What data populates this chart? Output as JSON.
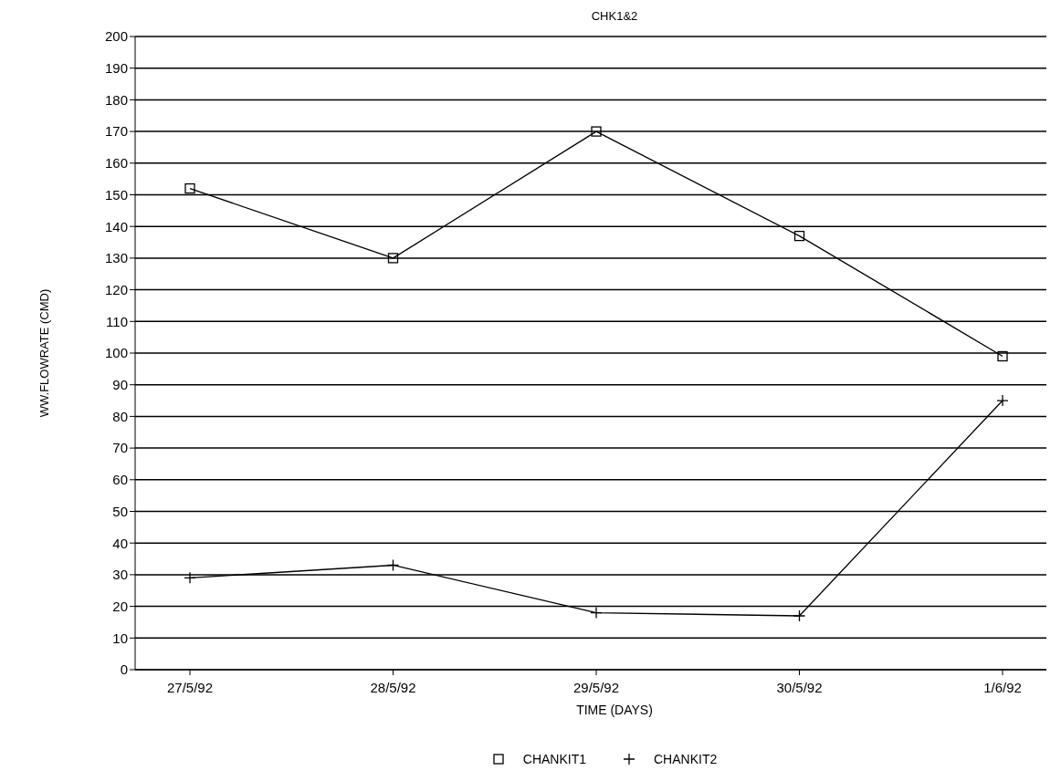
{
  "chart_data": {
    "type": "line",
    "title": "CHK1&2",
    "xlabel": "TIME (DAYS)",
    "ylabel": "WW.FLOWRATE (CMD)",
    "categories": [
      "27/5/92",
      "28/5/92",
      "29/5/92",
      "30/5/92",
      "1/6/92"
    ],
    "series": [
      {
        "name": "CHANKIT1",
        "color": "#000000",
        "marker": "square",
        "values": [
          152,
          130,
          170,
          137,
          99
        ]
      },
      {
        "name": "CHANKIT2",
        "color": "#000000",
        "marker": "cross",
        "values": [
          29,
          33,
          18,
          17,
          85
        ]
      }
    ],
    "ylim": [
      0,
      200
    ],
    "yticks": [
      0,
      10,
      20,
      30,
      40,
      50,
      60,
      70,
      80,
      90,
      100,
      110,
      120,
      130,
      140,
      150,
      160,
      170,
      180,
      190,
      200
    ],
    "grid": "y",
    "legend": "bottom",
    "line_style": "solid"
  }
}
